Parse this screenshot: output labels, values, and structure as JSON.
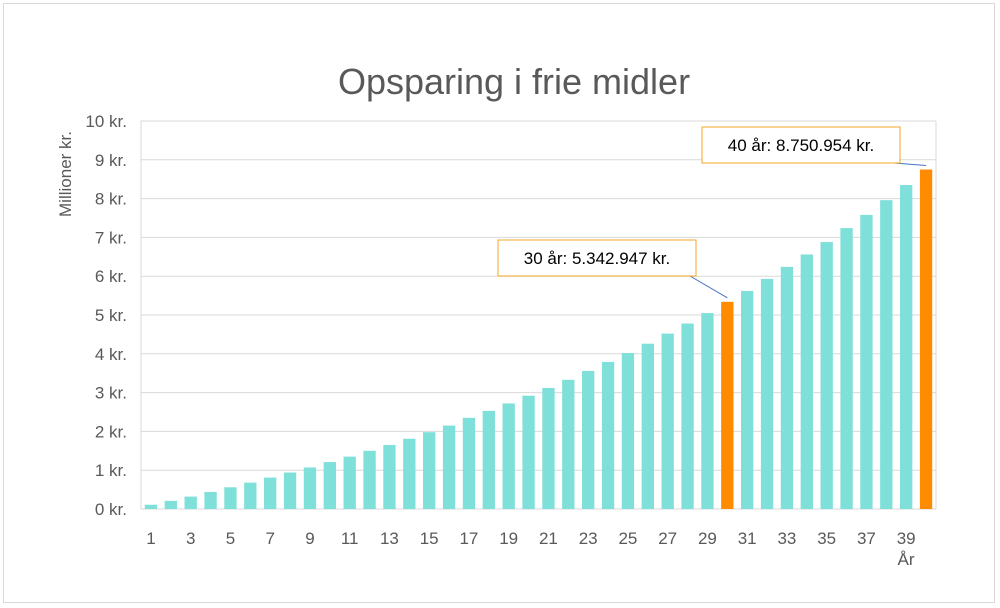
{
  "chart_data": {
    "type": "bar",
    "title": "Opsparing i frie midler",
    "xlabel": "År",
    "ylabel": "Millioner kr.",
    "ylim": [
      0,
      10
    ],
    "y_tick_labels": [
      "0 kr.",
      "1 kr.",
      "2 kr.",
      "3 kr.",
      "4 kr.",
      "5 kr.",
      "6 kr.",
      "7 kr.",
      "8 kr.",
      "9 kr.",
      "10 kr."
    ],
    "categories": [
      1,
      2,
      3,
      4,
      5,
      6,
      7,
      8,
      9,
      10,
      11,
      12,
      13,
      14,
      15,
      16,
      17,
      18,
      19,
      20,
      21,
      22,
      23,
      24,
      25,
      26,
      27,
      28,
      29,
      30,
      31,
      32,
      33,
      34,
      35,
      36,
      37,
      38,
      39,
      40
    ],
    "x_tick_labels": [
      "1",
      "3",
      "5",
      "7",
      "9",
      "11",
      "13",
      "15",
      "17",
      "19",
      "21",
      "23",
      "25",
      "27",
      "29",
      "31",
      "33",
      "35",
      "37",
      "39"
    ],
    "values": [
      0.11,
      0.21,
      0.32,
      0.44,
      0.56,
      0.68,
      0.81,
      0.94,
      1.07,
      1.21,
      1.35,
      1.5,
      1.65,
      1.81,
      1.98,
      2.15,
      2.35,
      2.53,
      2.72,
      2.92,
      3.12,
      3.33,
      3.56,
      3.79,
      4.02,
      4.26,
      4.52,
      4.78,
      5.05,
      5.34,
      5.62,
      5.93,
      6.24,
      6.56,
      6.88,
      7.24,
      7.58,
      7.96,
      8.35,
      8.75
    ],
    "highlighted": [
      30,
      40
    ],
    "annotations": [
      {
        "label": "30 år: 5.342.947 kr.",
        "year": 30
      },
      {
        "label": "40 år: 8.750.954 kr.",
        "year": 40
      }
    ],
    "grid": true,
    "legend": "none"
  },
  "colors": {
    "bar": "#7fe0da",
    "highlight": "#ff8c00",
    "grid": "#d9d9d9",
    "annotation_border": "#f5a623",
    "leader": "#4472c4",
    "text": "#595959"
  }
}
